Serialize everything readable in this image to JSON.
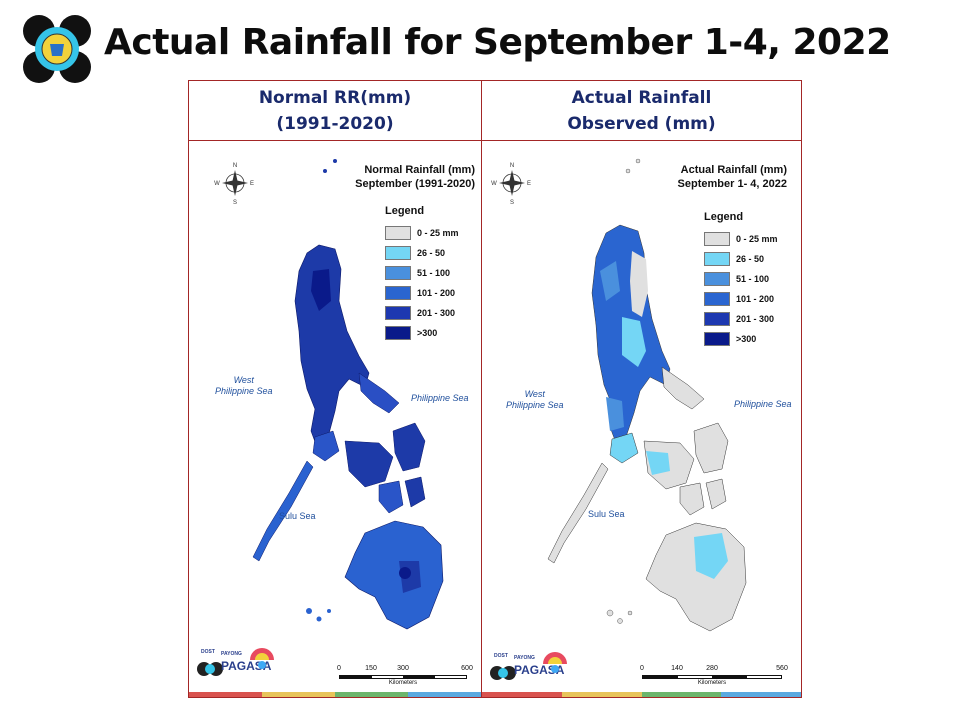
{
  "title": "Actual Rainfall for September 1-4, 2022",
  "colors": {
    "border": "#a32626",
    "header_text": "#1a2a6c",
    "strip": [
      "#d9534f",
      "#e8c45a",
      "#6cb56c",
      "#5aa9e0"
    ]
  },
  "panels": [
    {
      "header": [
        "Normal RR(mm)",
        "(1991-2020)"
      ],
      "map_title": [
        "Normal Rainfall (mm)",
        "September (1991-2020)"
      ],
      "legend_title": "Legend",
      "legend": [
        {
          "label": "0 - 25 mm",
          "color": "#e0e0e0"
        },
        {
          "label": "26 - 50",
          "color": "#74d6f5"
        },
        {
          "label": "51 - 100",
          "color": "#4a90dd"
        },
        {
          "label": "101 - 200",
          "color": "#2a65d0"
        },
        {
          "label": "201 - 300",
          "color": "#1d38b0"
        },
        {
          "label": ">300",
          "color": "#0a1a8a"
        }
      ],
      "west_sea": [
        "West",
        "Philippine Sea"
      ],
      "east_sea": "Philippine Sea",
      "south_sea": "Sulu Sea",
      "scale": [
        "0",
        "150",
        "300",
        "600"
      ],
      "scale_unit": "Kilometers",
      "map_fill": "dark"
    },
    {
      "header": [
        "Actual Rainfall",
        "Observed (mm)"
      ],
      "map_title": [
        "Actual Rainfall (mm)",
        "September 1- 4, 2022"
      ],
      "legend_title": "Legend",
      "legend": [
        {
          "label": "0 - 25 mm",
          "color": "#e0e0e0"
        },
        {
          "label": "26 - 50",
          "color": "#74d6f5"
        },
        {
          "label": "51 - 100",
          "color": "#4a90dd"
        },
        {
          "label": "101 - 200",
          "color": "#2a65d0"
        },
        {
          "label": "201 - 300",
          "color": "#1d38b0"
        },
        {
          "label": ">300",
          "color": "#0a1a8a"
        }
      ],
      "west_sea": [
        "West",
        "Philippine Sea"
      ],
      "east_sea": "Philippine Sea",
      "south_sea": "Sulu Sea",
      "scale": [
        "0",
        "140",
        "280",
        "560"
      ],
      "scale_unit": "Kilometers",
      "map_fill": "light"
    }
  ],
  "pagasa": {
    "small": "DOST",
    "brand": "PAGASA",
    "tag": "PAYONG"
  }
}
